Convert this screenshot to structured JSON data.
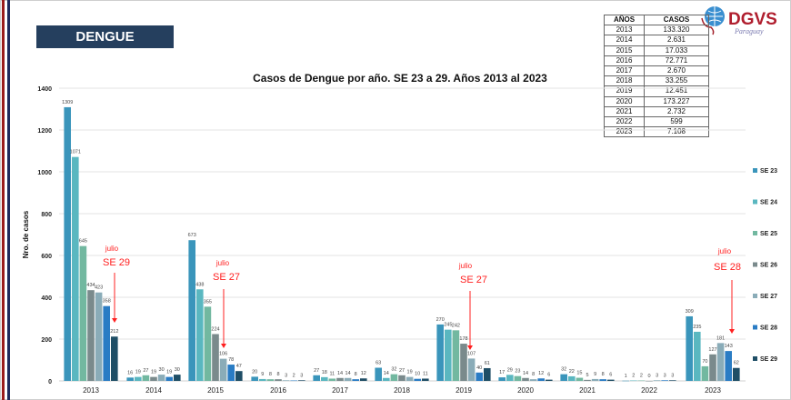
{
  "banner": "DENGUE",
  "logo": {
    "text": "DGVS",
    "subtext": "Paraguay"
  },
  "summary_table": {
    "headers": [
      "AÑOS",
      "CASOS"
    ],
    "rows": [
      [
        "2013",
        "133.320"
      ],
      [
        "2014",
        "2.631"
      ],
      [
        "2015",
        "17.033"
      ],
      [
        "2016",
        "72.771"
      ],
      [
        "2017",
        "2.670"
      ],
      [
        "2018",
        "33.255"
      ],
      [
        "2019",
        "12.451"
      ],
      [
        "2020",
        "173.227"
      ],
      [
        "2021",
        "2.732"
      ],
      [
        "2022",
        "599"
      ],
      [
        "2023",
        "7.108"
      ]
    ]
  },
  "colors": {
    "SE 23": "#3a95bb",
    "SE 24": "#5ab7c0",
    "SE 25": "#72b8a0",
    "SE 26": "#7a8a8c",
    "SE 27": "#8aacb8",
    "SE 28": "#2a7cc4",
    "SE 29": "#1f4e66",
    "annotation": "#ff2020"
  },
  "chart_data": {
    "type": "bar",
    "title": "Casos de Dengue por año. SE 23 a 29. Años 2013 al 2023",
    "xlabel": "",
    "ylabel": "Nro. de casos",
    "ylim": [
      0,
      1400
    ],
    "yticks": [
      0,
      200,
      400,
      600,
      800,
      1000,
      1200,
      1400
    ],
    "grid": true,
    "legend": "right",
    "categories": [
      "2013",
      "2014",
      "2015",
      "2016",
      "2017",
      "2018",
      "2019",
      "2020",
      "2021",
      "2022",
      "2023"
    ],
    "series": [
      {
        "name": "SE 23",
        "values": [
          1309,
          16,
          673,
          20,
          27,
          63,
          270,
          17,
          32,
          1,
          309
        ]
      },
      {
        "name": "SE 24",
        "values": [
          1071,
          19,
          438,
          9,
          18,
          14,
          245,
          29,
          22,
          2,
          235
        ]
      },
      {
        "name": "SE 25",
        "values": [
          645,
          27,
          355,
          8,
          11,
          32,
          242,
          23,
          15,
          2,
          70
        ]
      },
      {
        "name": "SE 26",
        "values": [
          434,
          19,
          224,
          8,
          14,
          27,
          178,
          14,
          5,
          0,
          127
        ]
      },
      {
        "name": "SE 27",
        "values": [
          423,
          30,
          106,
          3,
          14,
          19,
          107,
          8,
          9,
          3,
          181
        ]
      },
      {
        "name": "SE 28",
        "values": [
          358,
          19,
          78,
          2,
          8,
          10,
          40,
          12,
          8,
          3,
          143
        ]
      },
      {
        "name": "SE 29",
        "values": [
          212,
          30,
          47,
          3,
          12,
          11,
          61,
          6,
          6,
          3,
          62
        ]
      }
    ],
    "annotations": [
      {
        "category": "2013",
        "month": "julio",
        "week": "SE 29"
      },
      {
        "category": "2015",
        "month": "julio",
        "week": "SE 27"
      },
      {
        "category": "2019",
        "month": "julio",
        "week": "SE 27"
      },
      {
        "category": "2023",
        "month": "julio",
        "week": "SE 28"
      }
    ]
  }
}
